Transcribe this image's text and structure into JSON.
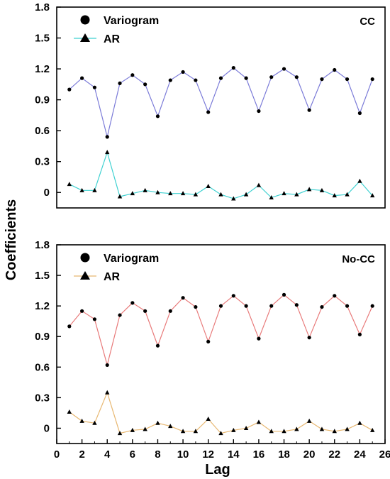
{
  "chart_data": {
    "type": "line",
    "ylabel": "Coefficients",
    "xlabel": "Lag",
    "xlim": [
      0,
      26
    ],
    "x_ticks": [
      "0",
      "2",
      "4",
      "6",
      "8",
      "10",
      "12",
      "14",
      "16",
      "18",
      "20",
      "22",
      "24",
      "26"
    ],
    "ylim": [
      -0.15,
      1.8
    ],
    "y_ticks": [
      "0",
      "0.3",
      "0.6",
      "0.9",
      "1.2",
      "1.5",
      "1.8"
    ],
    "x": [
      1,
      2,
      3,
      4,
      5,
      6,
      7,
      8,
      9,
      10,
      11,
      12,
      13,
      14,
      15,
      16,
      17,
      18,
      19,
      20,
      21,
      22,
      23,
      24,
      25
    ],
    "panels": [
      {
        "label": "CC",
        "legend": [
          "Variogram",
          "AR"
        ],
        "series": [
          {
            "name": "Variogram",
            "marker": "circle",
            "color": "#7b7bd8",
            "values": [
              1.0,
              1.11,
              1.02,
              0.54,
              1.06,
              1.14,
              1.05,
              0.74,
              1.09,
              1.17,
              1.09,
              0.78,
              1.11,
              1.21,
              1.11,
              0.79,
              1.12,
              1.2,
              1.12,
              0.8,
              1.1,
              1.19,
              1.1,
              0.77,
              1.1
            ]
          },
          {
            "name": "AR",
            "marker": "triangle",
            "color": "#3fd1d1",
            "values": [
              0.08,
              0.02,
              0.02,
              0.39,
              -0.04,
              -0.01,
              0.02,
              0.0,
              -0.01,
              -0.01,
              -0.02,
              0.06,
              -0.02,
              -0.06,
              -0.02,
              0.07,
              -0.05,
              -0.01,
              -0.02,
              0.03,
              0.02,
              -0.03,
              -0.02,
              0.11,
              -0.03
            ]
          }
        ]
      },
      {
        "label": "No-CC",
        "legend": [
          "Variogram",
          "AR"
        ],
        "series": [
          {
            "name": "Variogram",
            "marker": "circle",
            "color": "#e87a7a",
            "values": [
              1.0,
              1.15,
              1.07,
              0.62,
              1.11,
              1.23,
              1.15,
              0.81,
              1.15,
              1.28,
              1.19,
              0.85,
              1.2,
              1.3,
              1.2,
              0.88,
              1.2,
              1.31,
              1.21,
              0.89,
              1.19,
              1.3,
              1.2,
              0.92,
              1.2
            ]
          },
          {
            "name": "AR",
            "marker": "triangle",
            "color": "#e8b872",
            "values": [
              0.16,
              0.07,
              0.05,
              0.35,
              -0.05,
              -0.02,
              -0.01,
              0.05,
              0.02,
              -0.03,
              -0.03,
              0.09,
              -0.05,
              -0.02,
              0.0,
              0.06,
              -0.03,
              -0.03,
              -0.01,
              0.07,
              -0.01,
              -0.03,
              -0.01,
              0.05,
              -0.02
            ]
          }
        ]
      }
    ]
  }
}
